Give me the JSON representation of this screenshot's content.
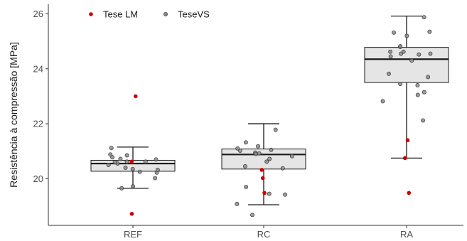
{
  "chart_data": {
    "type": "box",
    "ylabel": "Resistência à compressão [MPa]",
    "xlabel": "",
    "ylim": [
      18.3,
      26.35
    ],
    "yticks": [
      20,
      22,
      24,
      26
    ],
    "categories": [
      "REF",
      "RC",
      "RA"
    ],
    "grid": false,
    "legend_position": "top-left",
    "boxes": [
      {
        "category": "REF",
        "whisker_low": 19.65,
        "q1": 20.27,
        "median": 20.55,
        "q3": 20.67,
        "whisker_high": 21.15
      },
      {
        "category": "RC",
        "whisker_low": 19.05,
        "q1": 20.35,
        "median": 20.88,
        "q3": 21.08,
        "whisker_high": 22.0
      },
      {
        "category": "RA",
        "whisker_low": 20.75,
        "q1": 23.5,
        "median": 24.35,
        "q3": 24.78,
        "whisker_high": 25.92
      }
    ],
    "series": [
      {
        "name": "TeseVS",
        "color": "#7f7f7f",
        "points": [
          {
            "x": "REF",
            "y": 20.02
          },
          {
            "x": "REF",
            "y": 20.22
          },
          {
            "x": "REF",
            "y": 20.5
          },
          {
            "x": "REF",
            "y": 20.62
          },
          {
            "x": "REF",
            "y": 20.7
          },
          {
            "x": "REF",
            "y": 20.78
          },
          {
            "x": "REF",
            "y": 20.4
          },
          {
            "x": "REF",
            "y": 19.72
          },
          {
            "x": "REF",
            "y": 20.25
          },
          {
            "x": "REF",
            "y": 20.55
          },
          {
            "x": "REF",
            "y": 21.12
          },
          {
            "x": "REF",
            "y": 20.32
          },
          {
            "x": "REF",
            "y": 20.85
          },
          {
            "x": "REF",
            "y": 20.6
          },
          {
            "x": "REF",
            "y": 20.35
          },
          {
            "x": "REF",
            "y": 20.72
          },
          {
            "x": "REF",
            "y": 20.88
          },
          {
            "x": "REF",
            "y": 20.62
          },
          {
            "x": "REF",
            "y": 19.65
          },
          {
            "x": "RC",
            "y": 18.68
          },
          {
            "x": "RC",
            "y": 19.08
          },
          {
            "x": "RC",
            "y": 19.42
          },
          {
            "x": "RC",
            "y": 19.7
          },
          {
            "x": "RC",
            "y": 20.38
          },
          {
            "x": "RC",
            "y": 20.92
          },
          {
            "x": "RC",
            "y": 21.32
          },
          {
            "x": "RC",
            "y": 20.62
          },
          {
            "x": "RC",
            "y": 20.95
          },
          {
            "x": "RC",
            "y": 21.78
          },
          {
            "x": "RC",
            "y": 20.72
          },
          {
            "x": "RC",
            "y": 21.02
          },
          {
            "x": "RC",
            "y": 20.45
          },
          {
            "x": "RC",
            "y": 21.18
          },
          {
            "x": "RC",
            "y": 21.1
          },
          {
            "x": "RC",
            "y": 20.82
          },
          {
            "x": "RC",
            "y": 20.9
          },
          {
            "x": "RC",
            "y": 21.05
          },
          {
            "x": "RC",
            "y": 19.45
          },
          {
            "x": "RA",
            "y": 25.35
          },
          {
            "x": "RA",
            "y": 25.32
          },
          {
            "x": "RA",
            "y": 24.8
          },
          {
            "x": "RA",
            "y": 24.62
          },
          {
            "x": "RA",
            "y": 23.45
          },
          {
            "x": "RA",
            "y": 22.12
          },
          {
            "x": "RA",
            "y": 24.55
          },
          {
            "x": "RA",
            "y": 24.82
          },
          {
            "x": "RA",
            "y": 24.62
          },
          {
            "x": "RA",
            "y": 23.82
          },
          {
            "x": "RA",
            "y": 23.4
          },
          {
            "x": "RA",
            "y": 22.82
          },
          {
            "x": "RA",
            "y": 24.45
          },
          {
            "x": "RA",
            "y": 24.52
          },
          {
            "x": "RA",
            "y": 25.88
          },
          {
            "x": "RA",
            "y": 24.55
          },
          {
            "x": "RA",
            "y": 23.7
          },
          {
            "x": "RA",
            "y": 23.15
          },
          {
            "x": "RA",
            "y": 23.05
          },
          {
            "x": "RA",
            "y": 24.3
          },
          {
            "x": "RA",
            "y": 25.2
          }
        ]
      },
      {
        "name": "Tese LM",
        "color": "#cc0000",
        "points": [
          {
            "x": "REF",
            "y": 23.0
          },
          {
            "x": "REF",
            "y": 20.62
          },
          {
            "x": "REF",
            "y": 18.72
          },
          {
            "x": "RC",
            "y": 20.32
          },
          {
            "x": "RC",
            "y": 20.02
          },
          {
            "x": "RC",
            "y": 19.48
          },
          {
            "x": "RA",
            "y": 21.4
          },
          {
            "x": "RA",
            "y": 20.75
          },
          {
            "x": "RA",
            "y": 19.48
          }
        ]
      }
    ],
    "legend": [
      {
        "label": "Tese LM",
        "color": "#cc0000"
      },
      {
        "label": "TeseVS",
        "color": "#7f7f7f"
      }
    ]
  }
}
